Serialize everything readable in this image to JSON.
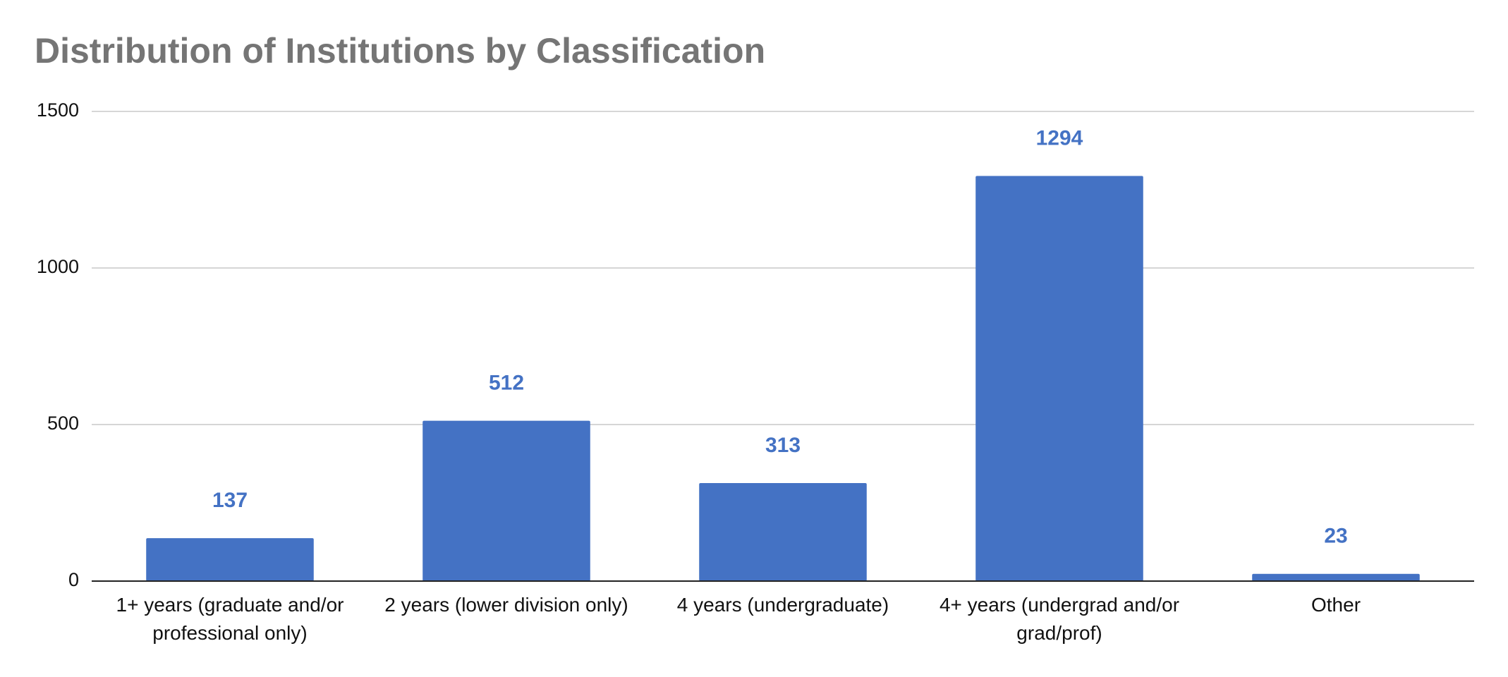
{
  "chart_data": {
    "type": "bar",
    "title": "Distribution of Institutions by Classification",
    "categories": [
      "1+ years (graduate and/or professional only)",
      "2 years (lower division only)",
      "4 years (undergraduate)",
      "4+ years (undergrad and/or grad/prof)",
      "Other"
    ],
    "values": [
      137,
      512,
      313,
      1294,
      23
    ],
    "color": "#4472c4",
    "ylim": [
      0,
      1500
    ],
    "yticks": [
      0,
      500,
      1000,
      1500
    ],
    "grid": true
  }
}
